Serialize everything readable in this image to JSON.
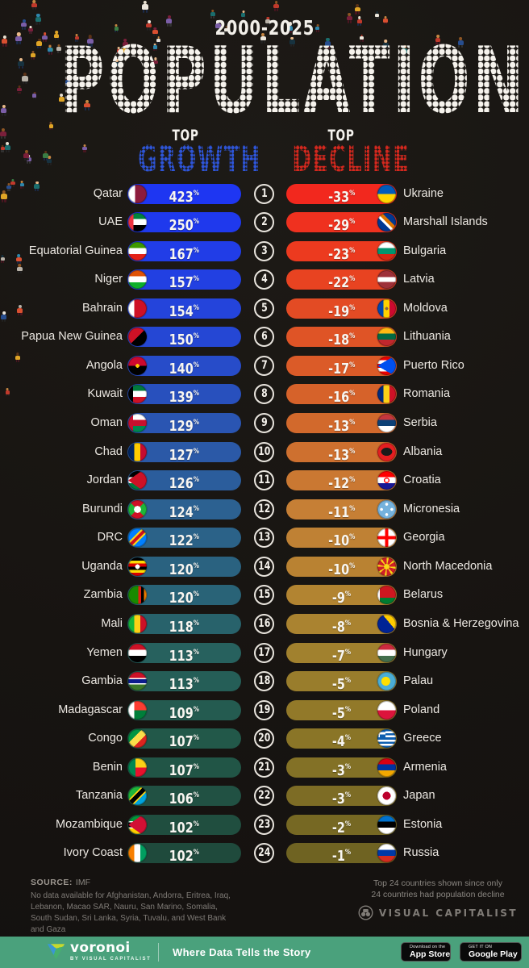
{
  "header": {
    "period": "2000-2025",
    "title": "POPULATION",
    "growth_top": "TOP",
    "growth_word": "GROWTH",
    "growth_color": "#2e55d8",
    "decline_top": "TOP",
    "decline_word": "DECLINE",
    "decline_color": "#d4281e"
  },
  "chart_data": {
    "type": "bar",
    "title": "POPULATION",
    "subtitle": "2000-2025",
    "unit": "%",
    "legend_position": "column-headers",
    "series": [
      {
        "name": "Top Growth",
        "entries": [
          {
            "rank": 1,
            "country": "Qatar",
            "value": 423,
            "flag_css": "linear-gradient(90deg,#ffffff 38%,#8d1b3d 38%)"
          },
          {
            "rank": 2,
            "country": "UAE",
            "value": 250,
            "flag_css": "linear-gradient(90deg,#ef3340 28%,rgba(0,0,0,0) 28%),linear-gradient(180deg,#00843d 33%,#ffffff 33% 66%,#000000 66%)"
          },
          {
            "rank": 3,
            "country": "Equatorial Guinea",
            "value": 167,
            "flag_css": "linear-gradient(180deg,#3e9a00 33%,#ffffff 33% 66%,#e32118 66%)"
          },
          {
            "rank": 4,
            "country": "Niger",
            "value": 157,
            "flag_css": "linear-gradient(180deg,#e05206 33%,#ffffff 33% 66%,#0db02b 66%)"
          },
          {
            "rank": 5,
            "country": "Bahrain",
            "value": 154,
            "flag_css": "linear-gradient(90deg,#ffffff 32%,#ce1126 32%)"
          },
          {
            "rank": 6,
            "country": "Papua New Guinea",
            "value": 150,
            "flag_css": "linear-gradient(135deg,#ce1126 50%,#000000 50%)"
          },
          {
            "rank": 7,
            "country": "Angola",
            "value": 140,
            "flag_css": "radial-gradient(circle at 50% 50%,#ffcb00 14%,rgba(0,0,0,0) 15%),linear-gradient(180deg,#cc092f 50%,#000000 50%)"
          },
          {
            "rank": 8,
            "country": "Kuwait",
            "value": 139,
            "flag_css": "linear-gradient(90deg,#000000 26%,rgba(0,0,0,0) 26%),linear-gradient(180deg,#007a3d 33%,#ffffff 33% 66%,#ce1126 66%)"
          },
          {
            "rank": 9,
            "country": "Oman",
            "value": 129,
            "flag_css": "linear-gradient(90deg,#c8102e 26%,rgba(0,0,0,0) 26%),linear-gradient(180deg,#ffffff 33%,#c8102e 33% 66%,#008751 66%)"
          },
          {
            "rank": 10,
            "country": "Chad",
            "value": 127,
            "flag_css": "linear-gradient(90deg,#002664 33%,#fecb00 33% 66%,#c60c30 66%)"
          },
          {
            "rank": 11,
            "country": "Jordan",
            "value": 126,
            "flag_css": "conic-gradient(from 55deg at 0% 50%,#ce1126 0deg 70deg,rgba(0,0,0,0) 70deg),linear-gradient(180deg,#000000 33%,#ffffff 33% 66%,#007a3d 66%)"
          },
          {
            "rank": 12,
            "country": "Burundi",
            "value": 124,
            "flag_css": "radial-gradient(circle at 50% 50%,#ffffff 26%,rgba(0,0,0,0) 27%),conic-gradient(from 45deg,#1eb53a 0deg 90deg,#ce1126 90deg 180deg,#1eb53a 180deg 270deg,#ce1126 270deg 360deg)"
          },
          {
            "rank": 13,
            "country": "DRC",
            "value": 122,
            "flag_css": "linear-gradient(135deg,#007fff 38%,#f7d618 38% 44%,#ce1021 44% 56%,#f7d618 56% 62%,#007fff 62%)"
          },
          {
            "rank": 14,
            "country": "Uganda",
            "value": 120,
            "flag_css": "radial-gradient(circle at 50% 50%,#ffffff 17%,rgba(0,0,0,0) 18%),linear-gradient(180deg,#000000 16.6%,#fcdc04 16.6% 33.3%,#d90000 33.3% 50%,#000000 50% 66.6%,#fcdc04 66.6% 83.3%,#d90000 83.3%)"
          },
          {
            "rank": 15,
            "country": "Zambia",
            "value": 120,
            "flag_css": "linear-gradient(90deg,rgba(0,0,0,0) 55%,#de2010 55% 70%,#000000 70% 85%,#ef7d00 85%),linear-gradient(180deg,#198a00,#198a00)"
          },
          {
            "rank": 16,
            "country": "Mali",
            "value": 118,
            "flag_css": "linear-gradient(90deg,#14b53a 33%,#fcd116 33% 66%,#ce1126 66%)"
          },
          {
            "rank": 17,
            "country": "Yemen",
            "value": 113,
            "flag_css": "linear-gradient(180deg,#ce1126 33%,#ffffff 33% 66%,#000000 66%)"
          },
          {
            "rank": 18,
            "country": "Gambia",
            "value": 113,
            "flag_css": "linear-gradient(180deg,#ce1126 32%,#ffffff 32% 40%,#0c1c8c 40% 60%,#ffffff 60% 68%,#3a7728 68%)"
          },
          {
            "rank": 19,
            "country": "Madagascar",
            "value": 109,
            "flag_css": "linear-gradient(90deg,#ffffff 33%,rgba(0,0,0,0) 33%),linear-gradient(180deg,#fc3d32 50%,#007e3a 50%)"
          },
          {
            "rank": 20,
            "country": "Congo",
            "value": 107,
            "flag_css": "linear-gradient(135deg,#009543 38%,#fbde4a 38% 62%,#dc241f 62%)"
          },
          {
            "rank": 21,
            "country": "Benin",
            "value": 107,
            "flag_css": "linear-gradient(90deg,#008751 40%,rgba(0,0,0,0) 40%),linear-gradient(180deg,#fcd116 50%,#e8112d 50%)"
          },
          {
            "rank": 22,
            "country": "Tanzania",
            "value": 106,
            "flag_css": "linear-gradient(135deg,#1eb53a 36%,#fcd116 36% 42%,#000000 42% 58%,#fcd116 58% 64%,#00a3dd 64%)"
          },
          {
            "rank": 23,
            "country": "Mozambique",
            "value": 102,
            "flag_css": "conic-gradient(from 55deg at 0% 50%,#d21034 0deg 70deg,rgba(0,0,0,0) 70deg),linear-gradient(180deg,#009639 30%,#ffffff 30% 37%,#000000 37% 63%,#ffffff 63% 70%,#ffd100 70%)"
          },
          {
            "rank": 24,
            "country": "Ivory Coast",
            "value": 102,
            "flag_css": "linear-gradient(90deg,#f77f00 33%,#ffffff 33% 66%,#009e60 66%)"
          }
        ]
      },
      {
        "name": "Top Decline",
        "entries": [
          {
            "rank": 1,
            "country": "Ukraine",
            "value": -33,
            "flag_css": "linear-gradient(180deg,#005bbb 50%,#ffd500 50%)"
          },
          {
            "rank": 2,
            "country": "Marshall Islands",
            "value": -29,
            "flag_css": "linear-gradient(45deg,#003893 40%,#ffffff 40% 50%,#dd7500 50% 62%,#003893 62%)"
          },
          {
            "rank": 3,
            "country": "Bulgaria",
            "value": -23,
            "flag_css": "linear-gradient(180deg,#ffffff 33%,#00966e 33% 66%,#d62612 66%)"
          },
          {
            "rank": 4,
            "country": "Latvia",
            "value": -22,
            "flag_css": "linear-gradient(180deg,#9e3039 38%,#ffffff 38% 62%,#9e3039 62%)"
          },
          {
            "rank": 5,
            "country": "Moldova",
            "value": -19,
            "flag_css": "radial-gradient(circle at 50% 50%,#8a6642 11%,rgba(0,0,0,0) 12%),linear-gradient(90deg,#0046ae 33%,#ffd200 33% 66%,#cc092f 66%)"
          },
          {
            "rank": 6,
            "country": "Lithuania",
            "value": -18,
            "flag_css": "linear-gradient(180deg,#fdb913 33%,#006a44 33% 66%,#c1272d 66%)"
          },
          {
            "rank": 7,
            "country": "Puerto Rico",
            "value": -17,
            "flag_css": "conic-gradient(from 60deg at 0% 50%,#0050f0 0deg 60deg,rgba(0,0,0,0) 60deg),repeating-linear-gradient(180deg,#ed0000 0 20%,#ffffff 20% 40%)"
          },
          {
            "rank": 8,
            "country": "Romania",
            "value": -16,
            "flag_css": "linear-gradient(90deg,#002b7f 33%,#fcd116 33% 66%,#ce1126 66%)"
          },
          {
            "rank": 9,
            "country": "Serbia",
            "value": -13,
            "flag_css": "linear-gradient(180deg,#c6363c 33%,#0c4076 33% 66%,#ffffff 66%)"
          },
          {
            "rank": 10,
            "country": "Albania",
            "value": -13,
            "flag_css": "radial-gradient(ellipse 30% 22% at 50% 48%,#1a1a1a 98%,rgba(0,0,0,0) 100%),linear-gradient(180deg,#e41e20,#e41e20)"
          },
          {
            "rank": 11,
            "country": "Croatia",
            "value": -12,
            "flag_css": "radial-gradient(circle at 50% 50%,#ffffff 13%,rgba(0,0,0,0) 14%),radial-gradient(circle at 50% 50%,#ff0000 21%,rgba(0,0,0,0) 22%),linear-gradient(180deg,#ff0000 33%,#ffffff 33% 66%,#171796 66%)"
          },
          {
            "rank": 12,
            "country": "Micronesia",
            "value": -11,
            "flag_css": "radial-gradient(circle at 50% 22%,#ffffff 8%,rgba(0,0,0,0) 9%),radial-gradient(circle at 50% 78%,#ffffff 8%,rgba(0,0,0,0) 9%),radial-gradient(circle at 22% 50%,#ffffff 8%,rgba(0,0,0,0) 9%),radial-gradient(circle at 78% 50%,#ffffff 8%,rgba(0,0,0,0) 9%),linear-gradient(180deg,#75b2dd,#75b2dd)"
          },
          {
            "rank": 13,
            "country": "Georgia",
            "value": -10,
            "flag_css": "linear-gradient(90deg,rgba(0,0,0,0) 42%,#ff0000 42% 58%,rgba(0,0,0,0) 58%),linear-gradient(180deg,rgba(0,0,0,0) 42%,#ff0000 42% 58%,rgba(0,0,0,0) 58%),linear-gradient(180deg,#ffffff,#ffffff)"
          },
          {
            "rank": 14,
            "country": "North Macedonia",
            "value": -10,
            "flag_css": "radial-gradient(circle at 50% 50%,#f9d616 20%,rgba(0,0,0,0) 21%),repeating-conic-gradient(#f9d616 0deg 14deg,#ce2028 14deg 45deg)"
          },
          {
            "rank": 15,
            "country": "Belarus",
            "value": -9,
            "flag_css": "linear-gradient(90deg,#ffffff 14%,rgba(0,0,0,0) 14%),linear-gradient(180deg,#ce1720 66%,#007c30 66%)"
          },
          {
            "rank": 16,
            "country": "Bosnia & Herzegovina",
            "value": -8,
            "flag_css": "conic-gradient(from 90deg at 28% 0%,#fecb00 0deg 50deg,rgba(0,0,0,0) 50deg),linear-gradient(180deg,#002395,#002395)"
          },
          {
            "rank": 17,
            "country": "Hungary",
            "value": -7,
            "flag_css": "linear-gradient(180deg,#cd2a3e 33%,#ffffff 33% 66%,#436f4d 66%)"
          },
          {
            "rank": 18,
            "country": "Palau",
            "value": -5,
            "flag_css": "radial-gradient(circle at 45% 50%,#ffde00 32%,rgba(0,0,0,0) 33%),linear-gradient(180deg,#4aadd6,#4aadd6)"
          },
          {
            "rank": 19,
            "country": "Poland",
            "value": -5,
            "flag_css": "linear-gradient(180deg,#ffffff 50%,#dc143c 50%)"
          },
          {
            "rank": 20,
            "country": "Greece",
            "value": -4,
            "flag_css": "linear-gradient(90deg,rgba(0,0,0,0) 15%,#ffffff 15% 27%,rgba(0,0,0,0) 27%) 0 0/45% 45% no-repeat,linear-gradient(180deg,rgba(0,0,0,0) 36%,#ffffff 36% 64%,rgba(0,0,0,0) 64%) 0 0/45% 45% no-repeat,linear-gradient(#0d5eaf,#0d5eaf) 0 0/45% 45% no-repeat,repeating-linear-gradient(180deg,#0d5eaf 0 11.1%,#ffffff 11.1% 22.2%)"
          },
          {
            "rank": 21,
            "country": "Armenia",
            "value": -3,
            "flag_css": "linear-gradient(180deg,#d90012 33%,#0033a0 33% 66%,#f2a800 66%)"
          },
          {
            "rank": 22,
            "country": "Japan",
            "value": -3,
            "flag_css": "radial-gradient(circle at 50% 50%,#bc002d 30%,rgba(0,0,0,0) 31%),linear-gradient(180deg,#ffffff,#ffffff)"
          },
          {
            "rank": 23,
            "country": "Estonia",
            "value": -2,
            "flag_css": "linear-gradient(180deg,#0072ce 33%,#000000 33% 66%,#ffffff 66%)"
          },
          {
            "rank": 24,
            "country": "Russia",
            "value": -1,
            "flag_css": "linear-gradient(180deg,#ffffff 33%,#0039a6 33% 66%,#d52b1e 66%)"
          }
        ]
      }
    ]
  },
  "bars": {
    "percent_suffix": "%",
    "growth_stops": [
      {
        "i": 0,
        "c": "#1E36F2"
      },
      {
        "i": 3,
        "c": "#2240E2"
      },
      {
        "i": 5,
        "c": "#2547D4"
      },
      {
        "i": 8,
        "c": "#2A55B2"
      },
      {
        "i": 11,
        "c": "#2C6191"
      },
      {
        "i": 14,
        "c": "#296377"
      },
      {
        "i": 16,
        "c": "#27615E"
      },
      {
        "i": 19,
        "c": "#225849"
      },
      {
        "i": 23,
        "c": "#1F4A3C"
      }
    ],
    "decline_stops": [
      {
        "i": 0,
        "c": "#F2281E"
      },
      {
        "i": 2,
        "c": "#EC3A1F"
      },
      {
        "i": 5,
        "c": "#DF5426"
      },
      {
        "i": 8,
        "c": "#D2692C"
      },
      {
        "i": 11,
        "c": "#C67F35"
      },
      {
        "i": 14,
        "c": "#B28431"
      },
      {
        "i": 16,
        "c": "#A1812E"
      },
      {
        "i": 19,
        "c": "#8A7527"
      },
      {
        "i": 23,
        "c": "#6F6322"
      }
    ]
  },
  "footer": {
    "source_label": "SOURCE:",
    "source_value": "IMF",
    "note": "No data available for Afghanistan, Andorra, Eritrea, Iraq, Lebanon, Macao SAR, Nauru, San Marino, Somalia, South Sudan, Sri Lanka, Syria, Tuvalu, and West Bank and Gaza",
    "right_note_line1": "Top 24 countries shown since only",
    "right_note_line2": "24 countries had population decline",
    "brand": "VISUAL CAPITALIST"
  },
  "bottom_bar": {
    "background_color": "#4AA17C",
    "logo_text": "voronoi",
    "logo_sub": "BY VISUAL CAPITALIST",
    "tagline": "Where Data Tells the Story",
    "appstore_top": "Download on the",
    "appstore_bottom": "App Store",
    "play_top": "GET IT ON",
    "play_bottom": "Google Play"
  },
  "crowd": {
    "body_palette": [
      "#c0392b",
      "#2e86ab",
      "#1b6d6d",
      "#e0a526",
      "#ece6dc",
      "#7a1f3a",
      "#274d8e",
      "#d94f30",
      "#3a7d44",
      "#7b5ea7",
      "#b8b2a8",
      "#17323f"
    ],
    "skin_palette": [
      "#e8b98a",
      "#c68642",
      "#8d5524",
      "#5c3317",
      "#e8e0d0"
    ],
    "leg_palette": [
      "#222222",
      "#333333",
      "#1b2a4a",
      "#4a1520"
    ]
  }
}
